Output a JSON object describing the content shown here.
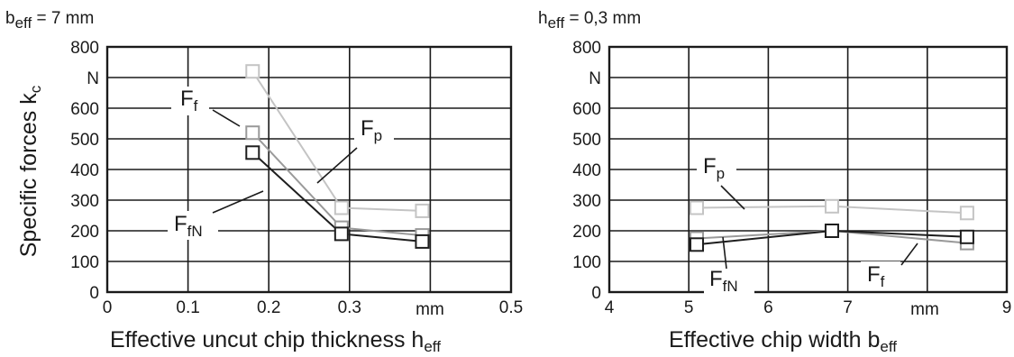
{
  "chart_data": [
    {
      "type": "line",
      "condition": {
        "base": "b",
        "sub": "eff",
        "rest": " = 7 mm"
      },
      "xlabel": {
        "main": "Effective uncut chip thickness h",
        "sub": "eff"
      },
      "ylabel": {
        "main": "Specific forces k",
        "sub": "c"
      },
      "x_unit": "mm",
      "y_unit": "N",
      "xlim": [
        0,
        0.5
      ],
      "ylim": [
        0,
        800
      ],
      "x_ticks": [
        0,
        0.1,
        0.2,
        0.3,
        0.4,
        0.5
      ],
      "x_tick_labels": [
        "0",
        "0.1",
        "0.2",
        "0.3",
        "",
        "0.5"
      ],
      "y_ticks": [
        0,
        100,
        200,
        300,
        400,
        500,
        600,
        700,
        800
      ],
      "y_tick_labels": [
        "0",
        "100",
        "200",
        "300",
        "400",
        "500",
        "600",
        "",
        "800"
      ],
      "grid": true,
      "series": [
        {
          "name": "F_p",
          "label": {
            "main": "F",
            "sub": "p"
          },
          "color": "#c4c4c4",
          "stroke": 2,
          "x": [
            0.18,
            0.29,
            0.39
          ],
          "y": [
            720,
            275,
            265
          ]
        },
        {
          "name": "F_f",
          "label": {
            "main": "F",
            "sub": "f"
          },
          "color": "#9a9a9a",
          "stroke": 2,
          "x": [
            0.18,
            0.29,
            0.39
          ],
          "y": [
            520,
            210,
            185
          ]
        },
        {
          "name": "F_fN",
          "label": {
            "main": "F",
            "sub": "fN"
          },
          "color": "#1e1e1e",
          "stroke": 2,
          "x": [
            0.18,
            0.29,
            0.39
          ],
          "y": [
            455,
            190,
            165
          ]
        }
      ]
    },
    {
      "type": "line",
      "condition": {
        "base": "h",
        "sub": "eff",
        "rest": " = 0,3 mm"
      },
      "xlabel": {
        "main": "Effective chip width b",
        "sub": "eff"
      },
      "x_unit": "mm",
      "y_unit": "N",
      "xlim": [
        4,
        9
      ],
      "ylim": [
        0,
        800
      ],
      "x_ticks": [
        4,
        5,
        6,
        7,
        8,
        9
      ],
      "x_tick_labels": [
        "4",
        "5",
        "6",
        "7",
        "",
        "9"
      ],
      "y_ticks": [
        0,
        100,
        200,
        300,
        400,
        500,
        600,
        700,
        800
      ],
      "y_tick_labels": [
        "0",
        "100",
        "200",
        "300",
        "400",
        "500",
        "600",
        "",
        "800"
      ],
      "grid": true,
      "series": [
        {
          "name": "F_p",
          "label": {
            "main": "F",
            "sub": "p"
          },
          "color": "#c4c4c4",
          "stroke": 2,
          "x": [
            5.1,
            6.8,
            8.5
          ],
          "y": [
            275,
            280,
            258
          ]
        },
        {
          "name": "F_f",
          "label": {
            "main": "F",
            "sub": "f"
          },
          "color": "#9a9a9a",
          "stroke": 2,
          "x": [
            5.1,
            6.8,
            8.5
          ],
          "y": [
            175,
            200,
            160
          ]
        },
        {
          "name": "F_fN",
          "label": {
            "main": "F",
            "sub": "fN"
          },
          "color": "#1e1e1e",
          "stroke": 2,
          "x": [
            5.1,
            6.8,
            8.5
          ],
          "y": [
            155,
            200,
            180
          ]
        }
      ]
    }
  ]
}
